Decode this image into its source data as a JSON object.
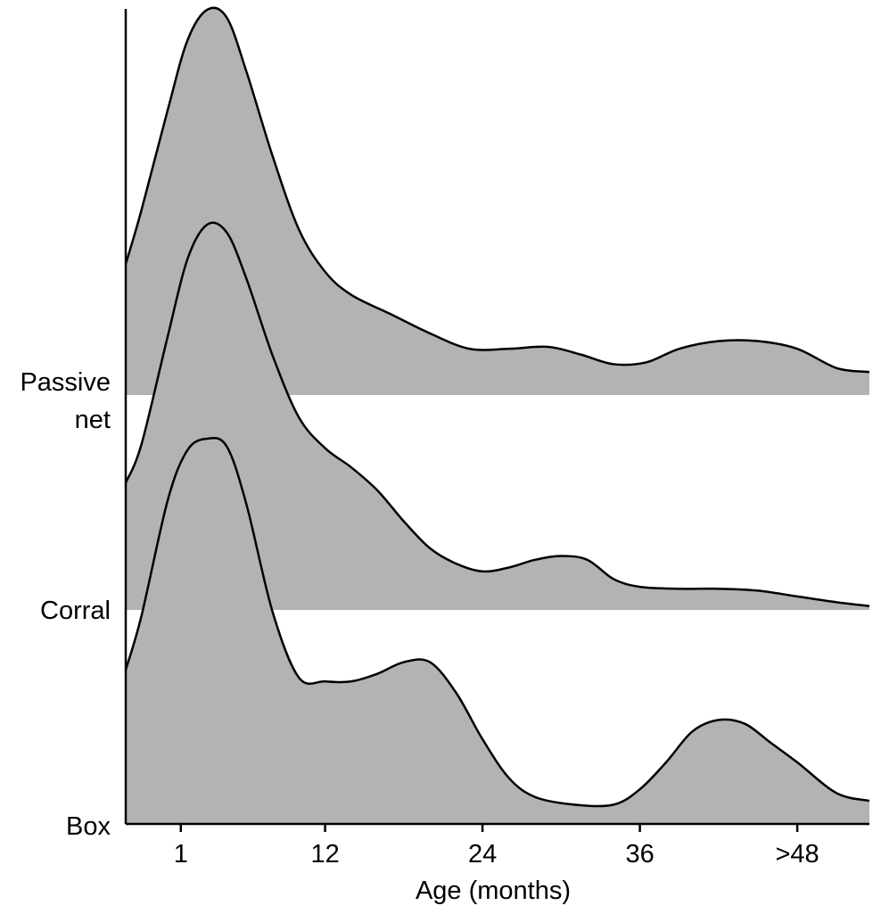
{
  "chart_data": {
    "type": "area",
    "xlabel": "Age (months)",
    "x_ticks": [
      {
        "value": 1,
        "label": "1"
      },
      {
        "value": 12,
        "label": "12"
      },
      {
        "value": 24,
        "label": "24"
      },
      {
        "value": 36,
        "label": "36"
      },
      {
        "value": 48,
        "label": ">48"
      }
    ],
    "xlim": [
      -3.2,
      53.5
    ],
    "fill_color": "#b3b3b3",
    "line_color": "#000000",
    "y_categories": [
      "Box",
      "Corral",
      "Passive net"
    ],
    "series": [
      {
        "name": "Passive net",
        "label_lines": [
          "Passive",
          "net"
        ],
        "x": [
          -3.2,
          -2,
          0,
          1.5,
          3,
          4.5,
          6,
          8,
          10,
          12,
          14,
          17,
          20,
          23,
          26,
          29,
          31.5,
          34,
          36.5,
          39,
          42,
          45,
          48,
          51,
          53.5
        ],
        "y": [
          0.34,
          0.48,
          0.74,
          0.92,
          1.0,
          0.98,
          0.84,
          0.62,
          0.43,
          0.32,
          0.26,
          0.21,
          0.16,
          0.12,
          0.12,
          0.125,
          0.105,
          0.08,
          0.085,
          0.12,
          0.14,
          0.14,
          0.12,
          0.07,
          0.06
        ]
      },
      {
        "name": "Corral",
        "label_lines": [
          "Corral"
        ],
        "x": [
          -3.2,
          -2,
          0,
          1.5,
          3,
          4.5,
          6,
          8,
          10,
          12,
          14,
          16,
          18,
          20,
          22,
          24,
          26,
          28,
          30,
          32,
          34,
          36,
          39,
          42,
          45,
          48,
          51,
          53.5
        ],
        "y": [
          0.33,
          0.43,
          0.71,
          0.91,
          1.0,
          0.98,
          0.86,
          0.66,
          0.5,
          0.42,
          0.37,
          0.31,
          0.23,
          0.16,
          0.12,
          0.1,
          0.11,
          0.13,
          0.14,
          0.13,
          0.08,
          0.06,
          0.055,
          0.055,
          0.05,
          0.035,
          0.02,
          0.01
        ]
      },
      {
        "name": "Box",
        "label_lines": [
          "Box"
        ],
        "x": [
          -3.2,
          -2,
          0,
          1.5,
          3,
          4.5,
          6,
          8,
          10,
          12,
          14,
          16,
          18,
          20,
          22,
          24,
          26,
          28,
          31,
          34,
          36,
          38,
          40,
          42,
          44,
          46,
          48,
          51,
          53.5
        ],
        "y": [
          0.4,
          0.54,
          0.84,
          0.97,
          1.0,
          0.98,
          0.83,
          0.55,
          0.38,
          0.37,
          0.37,
          0.39,
          0.42,
          0.42,
          0.34,
          0.22,
          0.12,
          0.07,
          0.05,
          0.05,
          0.09,
          0.16,
          0.24,
          0.27,
          0.26,
          0.21,
          0.16,
          0.08,
          0.06
        ]
      }
    ]
  }
}
